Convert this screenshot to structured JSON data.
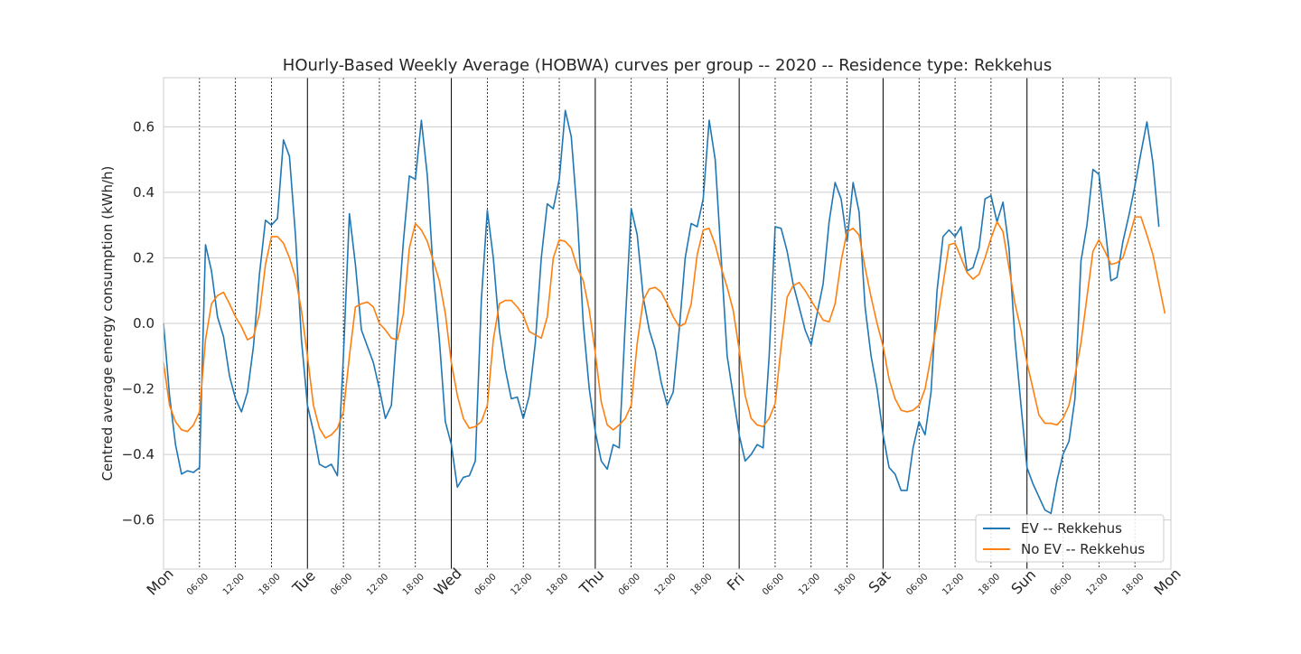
{
  "chart_data": {
    "type": "line",
    "title": "HOurly-Based Weekly Average (HOBWA) curves per group -- 2020 -- Residence type: Rekkehus",
    "xlabel": "",
    "ylabel": "Centred average energy consumption (kWh/h)",
    "xlim": [
      0,
      168
    ],
    "ylim": [
      -0.75,
      0.75
    ],
    "y_ticks": [
      -0.6,
      -0.4,
      -0.2,
      0.0,
      0.2,
      0.4,
      0.6
    ],
    "y_tick_labels": [
      "−0.6",
      "−0.4",
      "−0.2",
      "0.0",
      "0.2",
      "0.4",
      "0.6"
    ],
    "x_day_ticks": [
      {
        "hour": 0,
        "label": "Mon"
      },
      {
        "hour": 24,
        "label": "Tue"
      },
      {
        "hour": 48,
        "label": "Wed"
      },
      {
        "hour": 72,
        "label": "Thu"
      },
      {
        "hour": 96,
        "label": "Fri"
      },
      {
        "hour": 120,
        "label": "Sat"
      },
      {
        "hour": 144,
        "label": "Sun"
      },
      {
        "hour": 168,
        "label": "Mon"
      }
    ],
    "x_hour_ticks": [
      {
        "hour": 6,
        "label": "06:00"
      },
      {
        "hour": 12,
        "label": "12:00"
      },
      {
        "hour": 18,
        "label": "18:00"
      },
      {
        "hour": 30,
        "label": "06:00"
      },
      {
        "hour": 36,
        "label": "12:00"
      },
      {
        "hour": 42,
        "label": "18:00"
      },
      {
        "hour": 54,
        "label": "06:00"
      },
      {
        "hour": 60,
        "label": "12:00"
      },
      {
        "hour": 66,
        "label": "18:00"
      },
      {
        "hour": 78,
        "label": "06:00"
      },
      {
        "hour": 84,
        "label": "12:00"
      },
      {
        "hour": 90,
        "label": "18:00"
      },
      {
        "hour": 102,
        "label": "06:00"
      },
      {
        "hour": 108,
        "label": "12:00"
      },
      {
        "hour": 114,
        "label": "18:00"
      },
      {
        "hour": 126,
        "label": "06:00"
      },
      {
        "hour": 132,
        "label": "12:00"
      },
      {
        "hour": 138,
        "label": "18:00"
      },
      {
        "hour": 150,
        "label": "06:00"
      },
      {
        "hour": 156,
        "label": "12:00"
      },
      {
        "hour": 162,
        "label": "18:00"
      }
    ],
    "grid": true,
    "legend_position": "bottom-right",
    "series": [
      {
        "name": "EV -- Rekkehus",
        "color": "#1f77b4",
        "values": [
          0.0,
          -0.22,
          -0.37,
          -0.46,
          -0.45,
          -0.455,
          -0.44,
          0.24,
          0.16,
          0.02,
          -0.04,
          -0.16,
          -0.23,
          -0.27,
          -0.21,
          -0.07,
          0.15,
          0.315,
          0.3,
          0.32,
          0.56,
          0.51,
          0.27,
          -0.05,
          -0.25,
          -0.33,
          -0.43,
          -0.44,
          -0.43,
          -0.465,
          -0.1,
          0.335,
          0.18,
          -0.02,
          -0.07,
          -0.12,
          -0.2,
          -0.29,
          -0.25,
          0.0,
          0.25,
          0.45,
          0.44,
          0.62,
          0.45,
          0.15,
          -0.05,
          -0.3,
          -0.37,
          -0.5,
          -0.47,
          -0.465,
          -0.42,
          0.07,
          0.345,
          0.2,
          -0.02,
          -0.14,
          -0.23,
          -0.225,
          -0.29,
          -0.22,
          -0.06,
          0.2,
          0.365,
          0.35,
          0.44,
          0.65,
          0.57,
          0.33,
          0.0,
          -0.2,
          -0.33,
          -0.42,
          -0.445,
          -0.37,
          -0.38,
          0.0,
          0.35,
          0.27,
          0.08,
          -0.02,
          -0.08,
          -0.18,
          -0.25,
          -0.21,
          -0.02,
          0.2,
          0.305,
          0.295,
          0.38,
          0.62,
          0.5,
          0.2,
          -0.1,
          -0.22,
          -0.34,
          -0.42,
          -0.4,
          -0.37,
          -0.38,
          -0.1,
          0.295,
          0.29,
          0.22,
          0.12,
          0.05,
          -0.02,
          -0.065,
          0.03,
          0.12,
          0.31,
          0.43,
          0.38,
          0.25,
          0.43,
          0.34,
          0.05,
          -0.1,
          -0.2,
          -0.34,
          -0.44,
          -0.46,
          -0.51,
          -0.51,
          -0.38,
          -0.3,
          -0.34,
          -0.21,
          0.1,
          0.265,
          0.285,
          0.265,
          0.295,
          0.16,
          0.17,
          0.23,
          0.38,
          0.39,
          0.31,
          0.37,
          0.23,
          -0.05,
          -0.25,
          -0.44,
          -0.49,
          -0.53,
          -0.57,
          -0.58,
          -0.48,
          -0.4,
          -0.36,
          -0.23,
          0.19,
          0.3,
          0.47,
          0.455,
          0.3,
          0.13,
          0.14,
          0.25,
          0.33,
          0.42,
          0.52,
          0.615,
          0.49,
          0.295
        ]
      },
      {
        "name": "No EV -- Rekkehus",
        "color": "#ff7f0e",
        "values": [
          -0.12,
          -0.25,
          -0.3,
          -0.325,
          -0.33,
          -0.31,
          -0.27,
          -0.05,
          0.06,
          0.085,
          0.095,
          0.06,
          0.02,
          -0.01,
          -0.05,
          -0.04,
          0.03,
          0.18,
          0.265,
          0.265,
          0.245,
          0.2,
          0.14,
          0.04,
          -0.1,
          -0.25,
          -0.32,
          -0.35,
          -0.34,
          -0.32,
          -0.27,
          -0.1,
          0.05,
          0.06,
          0.065,
          0.05,
          0.0,
          -0.02,
          -0.045,
          -0.05,
          0.03,
          0.23,
          0.305,
          0.285,
          0.25,
          0.19,
          0.13,
          0.03,
          -0.12,
          -0.22,
          -0.29,
          -0.32,
          -0.315,
          -0.3,
          -0.25,
          -0.05,
          0.06,
          0.07,
          0.07,
          0.05,
          0.025,
          -0.025,
          -0.035,
          -0.045,
          0.02,
          0.2,
          0.255,
          0.25,
          0.23,
          0.17,
          0.13,
          0.04,
          -0.09,
          -0.24,
          -0.31,
          -0.325,
          -0.31,
          -0.29,
          -0.25,
          -0.06,
          0.07,
          0.105,
          0.11,
          0.095,
          0.06,
          0.02,
          -0.01,
          0.0,
          0.06,
          0.21,
          0.285,
          0.29,
          0.24,
          0.17,
          0.11,
          0.04,
          -0.08,
          -0.22,
          -0.29,
          -0.31,
          -0.315,
          -0.29,
          -0.245,
          -0.07,
          0.08,
          0.115,
          0.125,
          0.1,
          0.07,
          0.04,
          0.01,
          0.005,
          0.06,
          0.19,
          0.28,
          0.29,
          0.27,
          0.17,
          0.08,
          0.0,
          -0.07,
          -0.17,
          -0.23,
          -0.265,
          -0.27,
          -0.265,
          -0.25,
          -0.2,
          -0.1,
          0.0,
          0.12,
          0.24,
          0.245,
          0.2,
          0.155,
          0.135,
          0.15,
          0.2,
          0.26,
          0.31,
          0.28,
          0.17,
          0.06,
          -0.02,
          -0.12,
          -0.2,
          -0.28,
          -0.305,
          -0.305,
          -0.31,
          -0.29,
          -0.25,
          -0.16,
          -0.06,
          0.08,
          0.22,
          0.255,
          0.22,
          0.18,
          0.185,
          0.2,
          0.26,
          0.325,
          0.325,
          0.27,
          0.21,
          0.12,
          0.03
        ]
      }
    ]
  }
}
